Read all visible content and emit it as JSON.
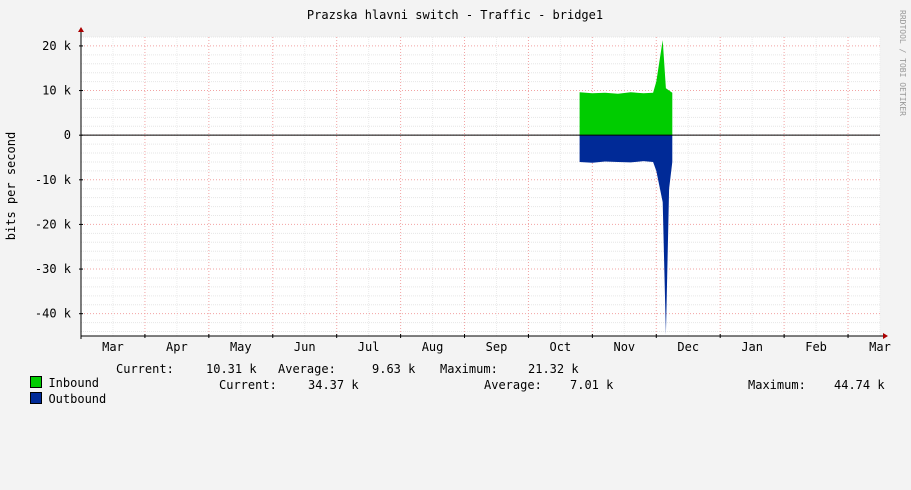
{
  "chart_data": {
    "type": "area",
    "title": "Prazska hlavni switch - Traffic - bridge1",
    "ylabel": "bits per second",
    "watermark": "RRDTOOL / TOBI OETIKER",
    "ylim": [
      -45,
      22
    ],
    "y_unit_suffix": "k",
    "yticks": [
      20,
      10,
      0,
      -10,
      -20,
      -30,
      -40
    ],
    "ytick_labels": [
      "20 k",
      "10 k",
      "0",
      "-10 k",
      "-20 k",
      "-30 k",
      "-40 k"
    ],
    "month_labels": [
      "Mar",
      "Apr",
      "May",
      "Jun",
      "Jul",
      "Aug",
      "Sep",
      "Oct",
      "Nov",
      "Dec",
      "Jan",
      "Feb",
      "Mar"
    ],
    "grid": true,
    "series": [
      {
        "name": "Inbound",
        "color": "#00cc00",
        "x": [
          7.8,
          8.0,
          8.2,
          8.4,
          8.6,
          8.8,
          8.95,
          9.0,
          9.1,
          9.15,
          9.25
        ],
        "values": [
          9.6,
          9.4,
          9.5,
          9.3,
          9.6,
          9.4,
          9.5,
          12.0,
          21.3,
          10.5,
          9.5
        ]
      },
      {
        "name": "Outbound",
        "color": "#002a97",
        "x": [
          7.8,
          8.0,
          8.2,
          8.4,
          8.6,
          8.8,
          8.95,
          9.0,
          9.1,
          9.15,
          9.2,
          9.25
        ],
        "values": [
          -6.0,
          -6.2,
          -5.9,
          -6.0,
          -6.1,
          -5.8,
          -6.0,
          -8.0,
          -15.0,
          -44.7,
          -12.0,
          -6.0
        ]
      }
    ]
  },
  "legend": {
    "inbound": {
      "name": "Inbound",
      "current_label": "Current:",
      "current": "10.31 k",
      "average_label": "Average:",
      "average": "9.63 k",
      "maximum_label": "Maximum:",
      "maximum": "21.32 k"
    },
    "outbound": {
      "name": "Outbound",
      "current_label": "Current:",
      "current": "34.37 k",
      "average_label": "Average:",
      "average": "7.01 k",
      "maximum_label": "Maximum:",
      "maximum": "44.74 k"
    }
  }
}
